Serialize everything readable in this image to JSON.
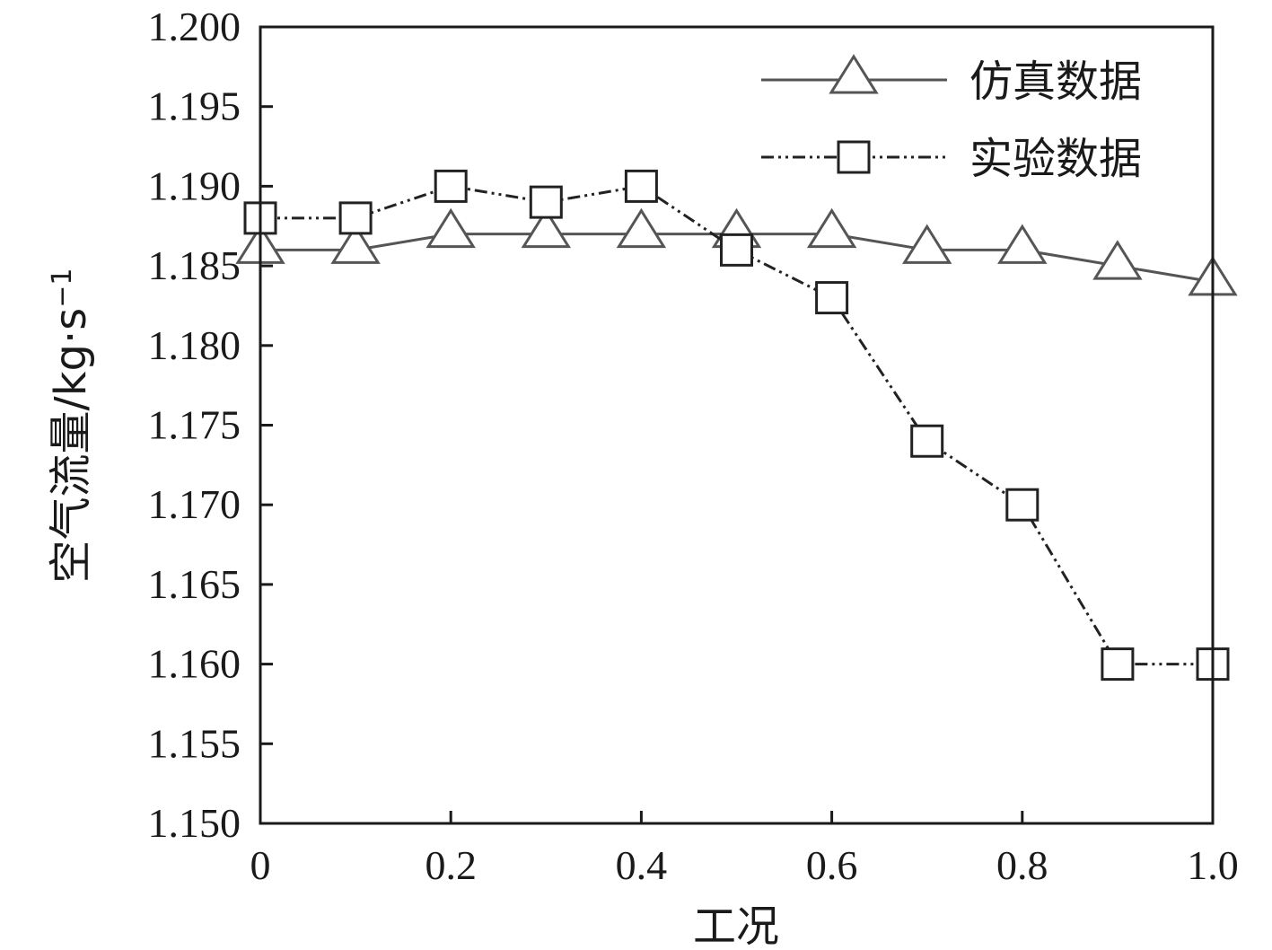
{
  "chart_data": {
    "type": "line",
    "xlabel": "工况",
    "ylabel": "空气流量/kg·s",
    "ylabel_superscript": "−1",
    "xlim": [
      0,
      1.0
    ],
    "ylim": [
      1.15,
      1.2
    ],
    "x_ticks": [
      "0",
      "0.2",
      "0.4",
      "0.6",
      "0.8",
      "1.0"
    ],
    "y_ticks": [
      "1.150",
      "1.155",
      "1.160",
      "1.165",
      "1.170",
      "1.175",
      "1.180",
      "1.185",
      "1.190",
      "1.195",
      "1.200"
    ],
    "grid": false,
    "legend_position": "top-right",
    "series": [
      {
        "name": "仿真数据",
        "marker": "triangle",
        "line_style": "solid",
        "color": "#555555",
        "x": [
          0,
          0.1,
          0.2,
          0.3,
          0.4,
          0.5,
          0.6,
          0.7,
          0.8,
          0.9,
          1.0
        ],
        "y": [
          1.186,
          1.186,
          1.187,
          1.187,
          1.187,
          1.187,
          1.187,
          1.186,
          1.186,
          1.185,
          1.184
        ]
      },
      {
        "name": "实验数据",
        "marker": "square",
        "line_style": "dash-dot-dot",
        "color": "#222222",
        "x": [
          0,
          0.1,
          0.2,
          0.3,
          0.4,
          0.5,
          0.6,
          0.7,
          0.8,
          0.9,
          1.0
        ],
        "y": [
          1.188,
          1.188,
          1.19,
          1.189,
          1.19,
          1.186,
          1.183,
          1.174,
          1.17,
          1.16,
          1.16
        ]
      }
    ]
  }
}
